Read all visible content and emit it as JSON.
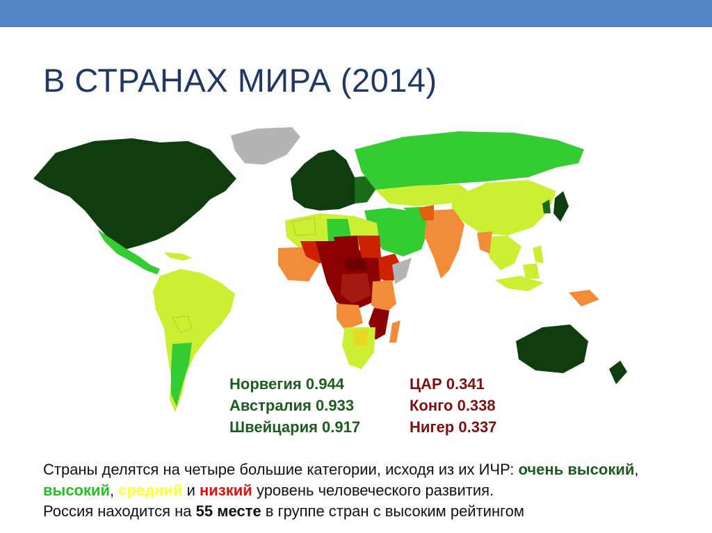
{
  "slide": {
    "title": "В СТРАНАХ МИРА (2014)"
  },
  "map": {
    "category_colors": {
      "very_high": "#0f3d0f",
      "high": "#33cc33",
      "medium": "#ccee33",
      "low_orange": "#f08c3a",
      "low": "#cc2200",
      "lowest": "#8b0000",
      "no_data": "#b4b4b4"
    }
  },
  "legend": {
    "top_countries": [
      {
        "text": "Норвегия 0.944"
      },
      {
        "text": "Австралия 0.933"
      },
      {
        "text": "Швейцария 0.917"
      }
    ],
    "bottom_countries": [
      {
        "text": "ЦАР 0.341"
      },
      {
        "text": "Конго 0.338"
      },
      {
        "text": "Нигер 0.337"
      }
    ]
  },
  "description": {
    "part1": "Страны делятся на четыре большие категории, исходя из их ИЧР: ",
    "very_high": "очень высокий",
    "sep1": ", ",
    "high": "высокий",
    "sep2": ", ",
    "medium": "средний",
    "sep3": " и ",
    "low": "низкий",
    "part2": " уровень человеческого развития.",
    "line3_a": "Россия находится на ",
    "rank": "55 месте",
    "line3_b": " в группе стран с высоким рейтингом"
  }
}
